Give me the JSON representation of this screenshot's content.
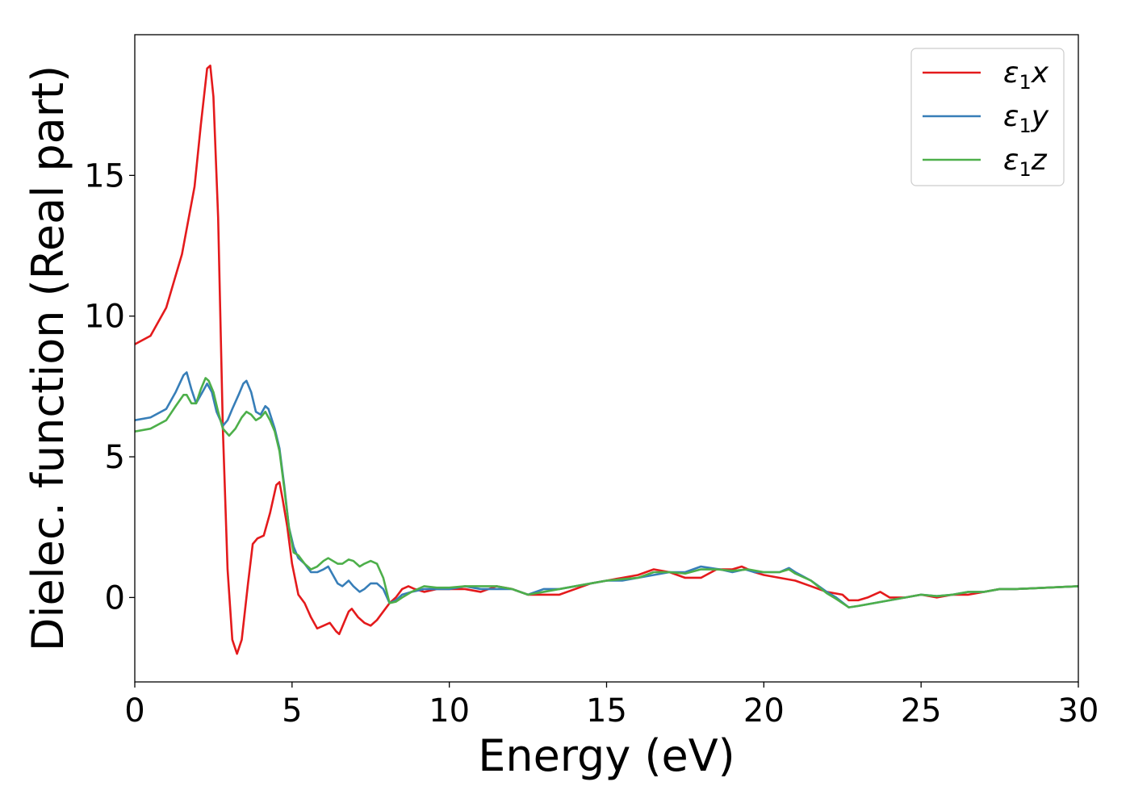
{
  "chart_data": {
    "type": "line",
    "title": "",
    "xlabel": "Energy (eV)",
    "ylabel": "Dielec. function (Real part)",
    "xlim": [
      0,
      30
    ],
    "ylim": [
      -3,
      20
    ],
    "xticks": [
      0,
      5,
      10,
      15,
      20,
      25,
      30
    ],
    "yticks": [
      0,
      5,
      10,
      15
    ],
    "grid": false,
    "legend_position": "top-right",
    "series": [
      {
        "name": "ε1x",
        "label_base": "ε",
        "label_sub": "1",
        "label_suffix": "x",
        "color": "#e41a1c",
        "points": [
          [
            0,
            9.0
          ],
          [
            0.5,
            9.3
          ],
          [
            1.0,
            10.3
          ],
          [
            1.5,
            12.2
          ],
          [
            1.9,
            14.6
          ],
          [
            2.1,
            16.8
          ],
          [
            2.3,
            18.8
          ],
          [
            2.4,
            18.9
          ],
          [
            2.5,
            17.8
          ],
          [
            2.65,
            13.5
          ],
          [
            2.8,
            6.0
          ],
          [
            2.95,
            1.0
          ],
          [
            3.1,
            -1.5
          ],
          [
            3.25,
            -2.0
          ],
          [
            3.4,
            -1.5
          ],
          [
            3.6,
            0.5
          ],
          [
            3.75,
            1.9
          ],
          [
            3.9,
            2.1
          ],
          [
            4.1,
            2.2
          ],
          [
            4.3,
            3.0
          ],
          [
            4.5,
            4.0
          ],
          [
            4.6,
            4.1
          ],
          [
            4.7,
            3.5
          ],
          [
            4.85,
            2.5
          ],
          [
            5.0,
            1.2
          ],
          [
            5.2,
            0.1
          ],
          [
            5.4,
            -0.2
          ],
          [
            5.6,
            -0.7
          ],
          [
            5.8,
            -1.1
          ],
          [
            6.0,
            -1.0
          ],
          [
            6.2,
            -0.9
          ],
          [
            6.4,
            -1.2
          ],
          [
            6.5,
            -1.3
          ],
          [
            6.65,
            -0.9
          ],
          [
            6.8,
            -0.5
          ],
          [
            6.9,
            -0.4
          ],
          [
            7.1,
            -0.7
          ],
          [
            7.3,
            -0.9
          ],
          [
            7.5,
            -1.0
          ],
          [
            7.7,
            -0.8
          ],
          [
            7.9,
            -0.5
          ],
          [
            8.1,
            -0.2
          ],
          [
            8.3,
            0.0
          ],
          [
            8.5,
            0.3
          ],
          [
            8.7,
            0.4
          ],
          [
            8.9,
            0.3
          ],
          [
            9.2,
            0.2
          ],
          [
            9.6,
            0.3
          ],
          [
            10.0,
            0.3
          ],
          [
            10.5,
            0.3
          ],
          [
            11.0,
            0.2
          ],
          [
            11.5,
            0.4
          ],
          [
            12.0,
            0.3
          ],
          [
            12.5,
            0.1
          ],
          [
            13.0,
            0.1
          ],
          [
            13.5,
            0.1
          ],
          [
            14.0,
            0.3
          ],
          [
            14.5,
            0.5
          ],
          [
            15.0,
            0.6
          ],
          [
            15.5,
            0.7
          ],
          [
            16.0,
            0.8
          ],
          [
            16.5,
            1.0
          ],
          [
            17.0,
            0.9
          ],
          [
            17.5,
            0.7
          ],
          [
            18.0,
            0.7
          ],
          [
            18.5,
            1.0
          ],
          [
            19.0,
            1.0
          ],
          [
            19.3,
            1.1
          ],
          [
            19.7,
            0.9
          ],
          [
            20.0,
            0.8
          ],
          [
            20.5,
            0.7
          ],
          [
            21.0,
            0.6
          ],
          [
            21.5,
            0.4
          ],
          [
            22.0,
            0.2
          ],
          [
            22.5,
            0.1
          ],
          [
            22.7,
            -0.1
          ],
          [
            23.0,
            -0.1
          ],
          [
            23.3,
            0.0
          ],
          [
            23.7,
            0.2
          ],
          [
            24.0,
            0.0
          ],
          [
            24.5,
            0.0
          ],
          [
            25.0,
            0.1
          ],
          [
            25.5,
            0.0
          ],
          [
            26.0,
            0.1
          ],
          [
            26.5,
            0.1
          ],
          [
            27.0,
            0.2
          ],
          [
            27.5,
            0.3
          ],
          [
            28.0,
            0.3
          ],
          [
            29.0,
            0.35
          ],
          [
            30.0,
            0.4
          ]
        ]
      },
      {
        "name": "ε1y",
        "label_base": "ε",
        "label_sub": "1",
        "label_suffix": "y",
        "color": "#377eb8",
        "points": [
          [
            0,
            6.3
          ],
          [
            0.5,
            6.4
          ],
          [
            1.0,
            6.7
          ],
          [
            1.3,
            7.3
          ],
          [
            1.55,
            7.9
          ],
          [
            1.65,
            8.0
          ],
          [
            1.8,
            7.4
          ],
          [
            1.95,
            6.9
          ],
          [
            2.1,
            7.2
          ],
          [
            2.3,
            7.6
          ],
          [
            2.45,
            7.3
          ],
          [
            2.6,
            6.6
          ],
          [
            2.8,
            6.1
          ],
          [
            2.95,
            6.3
          ],
          [
            3.1,
            6.7
          ],
          [
            3.3,
            7.2
          ],
          [
            3.45,
            7.6
          ],
          [
            3.55,
            7.7
          ],
          [
            3.7,
            7.3
          ],
          [
            3.85,
            6.6
          ],
          [
            4.0,
            6.5
          ],
          [
            4.15,
            6.8
          ],
          [
            4.25,
            6.7
          ],
          [
            4.45,
            6.0
          ],
          [
            4.6,
            5.3
          ],
          [
            4.75,
            4.0
          ],
          [
            4.9,
            2.5
          ],
          [
            5.05,
            1.8
          ],
          [
            5.2,
            1.4
          ],
          [
            5.4,
            1.2
          ],
          [
            5.6,
            0.9
          ],
          [
            5.8,
            0.9
          ],
          [
            6.0,
            1.0
          ],
          [
            6.15,
            1.1
          ],
          [
            6.3,
            0.8
          ],
          [
            6.45,
            0.5
          ],
          [
            6.6,
            0.4
          ],
          [
            6.8,
            0.6
          ],
          [
            6.95,
            0.4
          ],
          [
            7.15,
            0.2
          ],
          [
            7.3,
            0.3
          ],
          [
            7.5,
            0.5
          ],
          [
            7.7,
            0.5
          ],
          [
            7.9,
            0.3
          ],
          [
            8.1,
            -0.2
          ],
          [
            8.3,
            -0.1
          ],
          [
            8.5,
            0.1
          ],
          [
            8.8,
            0.2
          ],
          [
            9.2,
            0.3
          ],
          [
            9.6,
            0.3
          ],
          [
            10.0,
            0.3
          ],
          [
            10.5,
            0.4
          ],
          [
            11.0,
            0.3
          ],
          [
            11.5,
            0.3
          ],
          [
            12.0,
            0.3
          ],
          [
            12.5,
            0.1
          ],
          [
            13.0,
            0.3
          ],
          [
            13.5,
            0.3
          ],
          [
            14.0,
            0.4
          ],
          [
            14.5,
            0.5
          ],
          [
            15.0,
            0.6
          ],
          [
            15.5,
            0.6
          ],
          [
            16.0,
            0.7
          ],
          [
            16.5,
            0.8
          ],
          [
            17.0,
            0.9
          ],
          [
            17.5,
            0.9
          ],
          [
            18.0,
            1.1
          ],
          [
            18.3,
            1.05
          ],
          [
            18.6,
            1.0
          ],
          [
            19.0,
            0.9
          ],
          [
            19.4,
            1.0
          ],
          [
            19.7,
            0.9
          ],
          [
            20.0,
            0.9
          ],
          [
            20.5,
            0.9
          ],
          [
            20.8,
            1.05
          ],
          [
            21.0,
            0.9
          ],
          [
            21.5,
            0.6
          ],
          [
            22.0,
            0.2
          ],
          [
            22.3,
            0.0
          ],
          [
            22.7,
            -0.35
          ],
          [
            23.0,
            -0.3
          ],
          [
            23.5,
            -0.2
          ],
          [
            24.0,
            -0.1
          ],
          [
            24.5,
            0.0
          ],
          [
            25.0,
            0.1
          ],
          [
            25.5,
            0.05
          ],
          [
            26.0,
            0.1
          ],
          [
            26.5,
            0.2
          ],
          [
            27.0,
            0.2
          ],
          [
            27.5,
            0.3
          ],
          [
            28.0,
            0.3
          ],
          [
            29.0,
            0.35
          ],
          [
            30.0,
            0.4
          ]
        ]
      },
      {
        "name": "ε1z",
        "label_base": "ε",
        "label_sub": "1",
        "label_suffix": "z",
        "color": "#4daf4a",
        "points": [
          [
            0,
            5.9
          ],
          [
            0.5,
            6.0
          ],
          [
            1.0,
            6.3
          ],
          [
            1.3,
            6.8
          ],
          [
            1.55,
            7.2
          ],
          [
            1.65,
            7.2
          ],
          [
            1.8,
            6.9
          ],
          [
            1.95,
            6.9
          ],
          [
            2.1,
            7.4
          ],
          [
            2.25,
            7.8
          ],
          [
            2.35,
            7.7
          ],
          [
            2.5,
            7.3
          ],
          [
            2.65,
            6.6
          ],
          [
            2.8,
            6.0
          ],
          [
            3.0,
            5.75
          ],
          [
            3.2,
            6.0
          ],
          [
            3.4,
            6.4
          ],
          [
            3.55,
            6.6
          ],
          [
            3.7,
            6.5
          ],
          [
            3.85,
            6.3
          ],
          [
            4.0,
            6.4
          ],
          [
            4.15,
            6.6
          ],
          [
            4.3,
            6.3
          ],
          [
            4.45,
            5.9
          ],
          [
            4.6,
            5.2
          ],
          [
            4.75,
            3.9
          ],
          [
            4.9,
            2.5
          ],
          [
            5.05,
            1.6
          ],
          [
            5.2,
            1.5
          ],
          [
            5.4,
            1.2
          ],
          [
            5.6,
            1.0
          ],
          [
            5.8,
            1.1
          ],
          [
            6.0,
            1.3
          ],
          [
            6.15,
            1.4
          ],
          [
            6.3,
            1.3
          ],
          [
            6.45,
            1.2
          ],
          [
            6.6,
            1.2
          ],
          [
            6.8,
            1.35
          ],
          [
            6.95,
            1.3
          ],
          [
            7.15,
            1.1
          ],
          [
            7.3,
            1.2
          ],
          [
            7.5,
            1.3
          ],
          [
            7.7,
            1.2
          ],
          [
            7.9,
            0.7
          ],
          [
            8.1,
            -0.2
          ],
          [
            8.3,
            -0.15
          ],
          [
            8.5,
            0.0
          ],
          [
            8.8,
            0.2
          ],
          [
            9.2,
            0.4
          ],
          [
            9.6,
            0.35
          ],
          [
            10.0,
            0.35
          ],
          [
            10.5,
            0.4
          ],
          [
            11.0,
            0.4
          ],
          [
            11.5,
            0.4
          ],
          [
            12.0,
            0.3
          ],
          [
            12.5,
            0.1
          ],
          [
            13.0,
            0.2
          ],
          [
            13.5,
            0.3
          ],
          [
            14.0,
            0.4
          ],
          [
            14.5,
            0.5
          ],
          [
            15.0,
            0.6
          ],
          [
            15.5,
            0.65
          ],
          [
            16.0,
            0.7
          ],
          [
            16.5,
            0.9
          ],
          [
            17.0,
            0.9
          ],
          [
            17.5,
            0.85
          ],
          [
            18.0,
            1.0
          ],
          [
            18.5,
            1.0
          ],
          [
            19.0,
            0.95
          ],
          [
            19.5,
            1.0
          ],
          [
            20.0,
            0.9
          ],
          [
            20.5,
            0.9
          ],
          [
            20.8,
            1.0
          ],
          [
            21.0,
            0.85
          ],
          [
            21.5,
            0.6
          ],
          [
            22.0,
            0.15
          ],
          [
            22.3,
            -0.05
          ],
          [
            22.7,
            -0.35
          ],
          [
            23.0,
            -0.3
          ],
          [
            23.5,
            -0.2
          ],
          [
            24.0,
            -0.1
          ],
          [
            24.5,
            0.0
          ],
          [
            25.0,
            0.1
          ],
          [
            25.5,
            0.05
          ],
          [
            26.0,
            0.1
          ],
          [
            26.5,
            0.2
          ],
          [
            27.0,
            0.2
          ],
          [
            27.5,
            0.3
          ],
          [
            28.0,
            0.3
          ],
          [
            29.0,
            0.35
          ],
          [
            30.0,
            0.4
          ]
        ]
      }
    ]
  }
}
